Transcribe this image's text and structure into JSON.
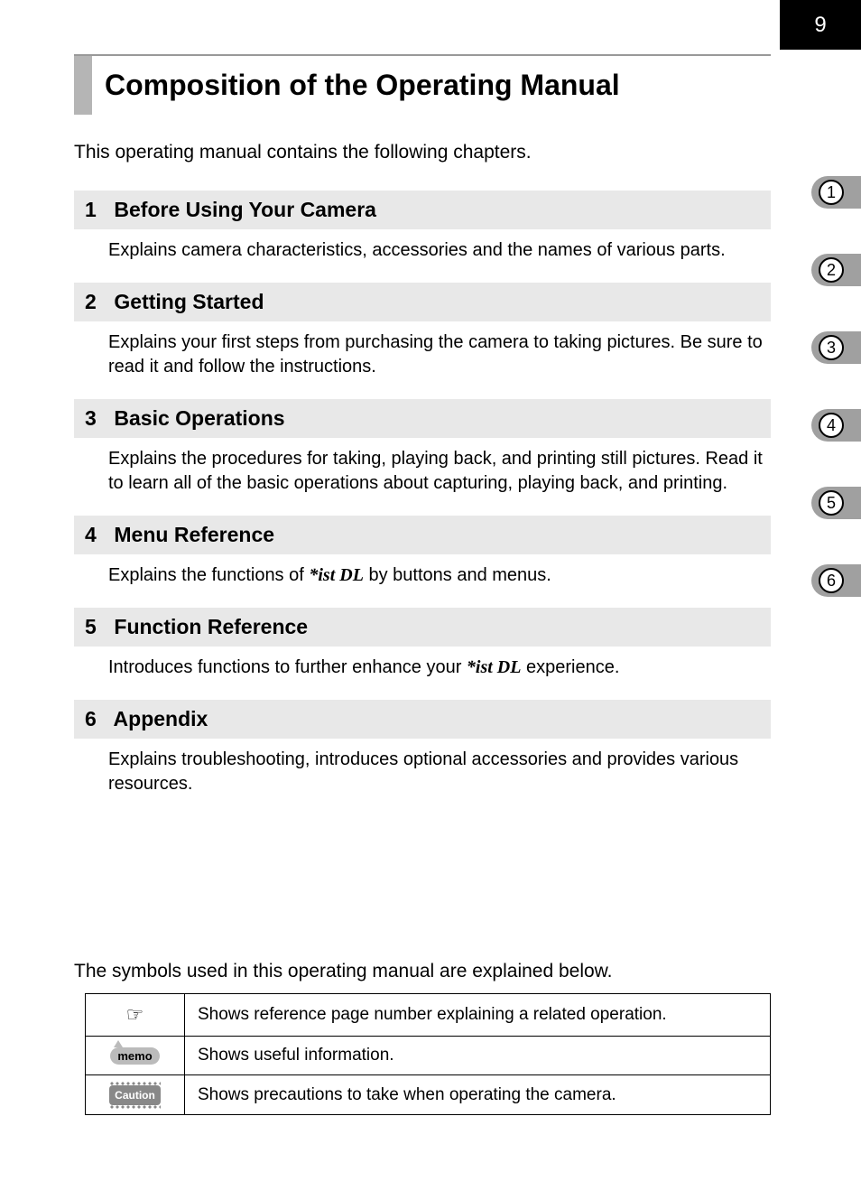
{
  "page_number": "9",
  "title": "Composition of the Operating Manual",
  "intro": "This operating manual contains the following chapters.",
  "side_tabs": [
    "1",
    "2",
    "3",
    "4",
    "5",
    "6"
  ],
  "sections": [
    {
      "num": "1",
      "title": "Before Using Your Camera",
      "body": "Explains camera characteristics, accessories and the names of various parts."
    },
    {
      "num": "2",
      "title": "Getting Started",
      "body": "Explains your first steps from purchasing the camera to taking pictures. Be sure to read it and follow the instructions."
    },
    {
      "num": "3",
      "title": "Basic Operations",
      "body": "Explains the procedures for taking, playing back, and printing still pictures. Read it to learn all of the basic operations about capturing, playing back, and printing."
    },
    {
      "num": "4",
      "title": "Menu Reference",
      "body_pre": "Explains the functions of ",
      "product": "*ist DL",
      "body_post": " by buttons and menus."
    },
    {
      "num": "5",
      "title": "Function Reference",
      "body_pre": "Introduces functions to further enhance your ",
      "product": "*ist DL",
      "body_post": " experience."
    },
    {
      "num": "6",
      "title": "Appendix",
      "body": "Explains troubleshooting, introduces optional accessories and provides various resources."
    }
  ],
  "symbols_intro": "The symbols used in this operating manual are explained below.",
  "symbol_rows": [
    {
      "icon_type": "ref",
      "icon_glyph": "☞",
      "desc": "Shows reference page number explaining a related operation."
    },
    {
      "icon_type": "memo",
      "icon_label": "memo",
      "desc": "Shows useful information."
    },
    {
      "icon_type": "caution",
      "icon_label": "Caution",
      "desc": "Shows precautions to take when operating the camera."
    }
  ],
  "colors": {
    "header_gray": "#e8e8e8",
    "title_bar_gray": "#b5b5b5",
    "tab_gray": "#a0a0a0",
    "black": "#000000",
    "white": "#ffffff"
  },
  "typography": {
    "title_pt": 32,
    "section_hdr_pt": 23,
    "body_pt": 20,
    "intro_pt": 21
  }
}
